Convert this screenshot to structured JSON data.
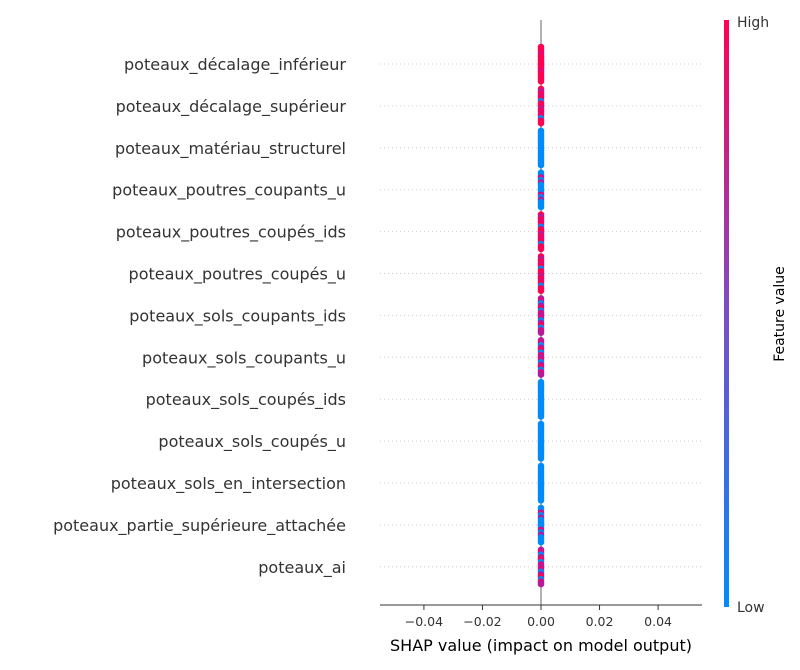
{
  "chart_data": {
    "type": "scatter",
    "subtype": "shap-beeswarm",
    "features": [
      {
        "name": "poteaux_décalage_inférieur",
        "pattern": "high"
      },
      {
        "name": "poteaux_décalage_supérieur",
        "pattern": "mostly-high"
      },
      {
        "name": "poteaux_matériau_structurel",
        "pattern": "low"
      },
      {
        "name": "poteaux_poutres_coupants_u",
        "pattern": "mixed-low"
      },
      {
        "name": "poteaux_poutres_coupés_ids",
        "pattern": "mostly-high"
      },
      {
        "name": "poteaux_poutres_coupés_u",
        "pattern": "mostly-high"
      },
      {
        "name": "poteaux_sols_coupants_ids",
        "pattern": "mixed"
      },
      {
        "name": "poteaux_sols_coupants_u",
        "pattern": "mixed"
      },
      {
        "name": "poteaux_sols_coupés_ids",
        "pattern": "low"
      },
      {
        "name": "poteaux_sols_coupés_u",
        "pattern": "low"
      },
      {
        "name": "poteaux_sols_en_intersection",
        "pattern": "low"
      },
      {
        "name": "poteaux_partie_supérieure_attachée",
        "pattern": "mixed-low"
      },
      {
        "name": "poteaux_ai",
        "pattern": "mixed"
      }
    ],
    "shap_value_all_features": 0.0,
    "x_ticks": [
      "−0.04",
      "−0.02",
      "0.00",
      "0.02",
      "0.04"
    ],
    "x_tick_values": [
      -0.04,
      -0.02,
      0.0,
      0.02,
      0.04
    ],
    "xlim": [
      -0.055,
      0.055
    ],
    "xlabel": "SHAP value (impact on model output)",
    "colorbar": {
      "title": "Feature value",
      "high_label": "High",
      "low_label": "Low",
      "high_color": "#ff0052",
      "low_color": "#008bfb"
    },
    "grid": "dotted horizontal per feature"
  }
}
